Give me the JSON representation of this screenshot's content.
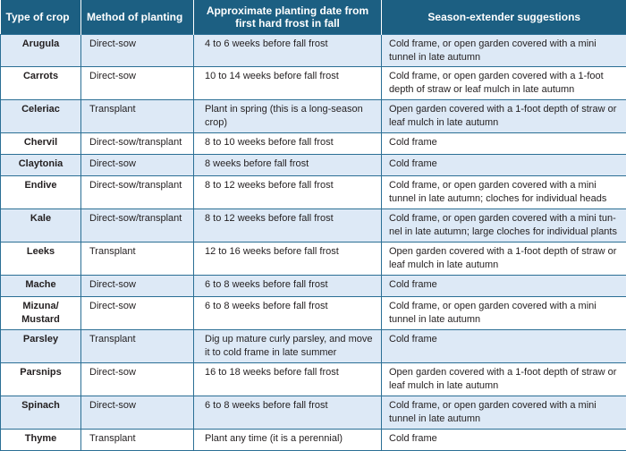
{
  "headers": {
    "crop": "Type of crop",
    "method": "Method of planting",
    "date": "Approximate planting date from first hard frost in fall",
    "extender": "Season-extender suggestions"
  },
  "rows": [
    {
      "crop": "Arugula",
      "method": "Direct-sow",
      "date": "4 to 6 weeks before fall frost",
      "extender": "Cold frame, or open garden covered with a mini tunnel in late autumn"
    },
    {
      "crop": "Carrots",
      "method": "Direct-sow",
      "date": "10 to 14 weeks before fall frost",
      "extender": "Cold frame, or open garden covered with a 1-foot depth of straw or leaf mulch in late autumn"
    },
    {
      "crop": "Celeriac",
      "method": "Transplant",
      "date": "Plant in spring (this is a long-season crop)",
      "extender": "Open garden covered with a 1-foot depth of straw or leaf mulch in late autumn"
    },
    {
      "crop": "Chervil",
      "method": "Direct-sow/transplant",
      "date": "8 to 10 weeks before fall frost",
      "extender": "Cold frame"
    },
    {
      "crop": "Claytonia",
      "method": "Direct-sow",
      "date": "8 weeks before fall frost",
      "extender": "Cold frame"
    },
    {
      "crop": "Endive",
      "method": "Direct-sow/transplant",
      "date": "8 to 12 weeks before fall frost",
      "extender": "Cold frame, or open garden covered with a mini tunnel in late autumn; cloches for individual heads"
    },
    {
      "crop": "Kale",
      "method": "Direct-sow/transplant",
      "date": "8 to 12 weeks before fall frost",
      "extender": "Cold frame, or open garden covered with a mini tun-nel in late autumn; large cloches for individual plants"
    },
    {
      "crop": "Leeks",
      "method": "Transplant",
      "date": "12 to 16 weeks before fall frost",
      "extender": "Open garden covered with a 1-foot depth of straw or leaf mulch in late autumn"
    },
    {
      "crop": "Mache",
      "method": "Direct-sow",
      "date": "6 to 8 weeks before fall frost",
      "extender": "Cold frame"
    },
    {
      "crop": "Mizuna/ Mustard",
      "method": "Direct-sow",
      "date": "6 to 8 weeks before fall frost",
      "extender": "Cold frame, or open garden covered with a mini tunnel in late autumn"
    },
    {
      "crop": "Parsley",
      "method": "Transplant",
      "date": "Dig up mature curly parsley, and move it to cold frame in late summer",
      "extender": "Cold frame"
    },
    {
      "crop": "Parsnips",
      "method": "Direct-sow",
      "date": "16 to 18 weeks before fall frost",
      "extender": "Open garden covered with a 1-foot depth of straw or leaf mulch in late autumn"
    },
    {
      "crop": "Spinach",
      "method": "Direct-sow",
      "date": "6 to 8 weeks before fall frost",
      "extender": "Cold frame, or open garden covered with a mini tunnel in late autumn"
    },
    {
      "crop": "Thyme",
      "method": "Transplant",
      "date": "Plant any time (it is a perennial)",
      "extender": "Cold frame"
    }
  ]
}
